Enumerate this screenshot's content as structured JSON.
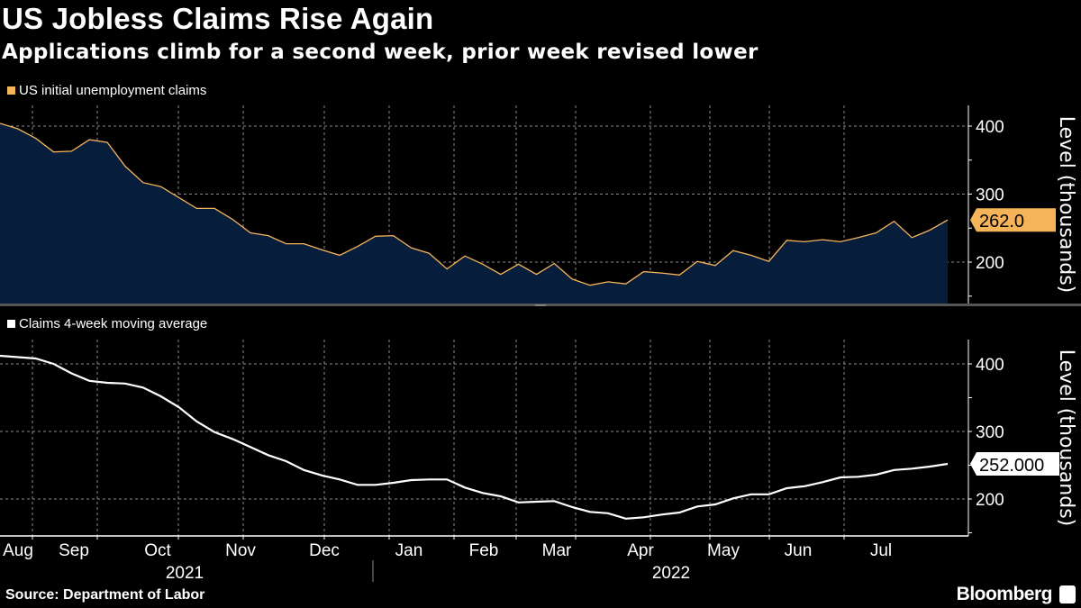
{
  "title": "US Jobless Claims Rise Again",
  "subtitle": "Applications climb for a second week, prior week revised lower",
  "source": "Source: Department of Labor",
  "brand": "Bloomberg",
  "colors": {
    "background": "#000000",
    "claims_line": "#f6b45a",
    "claims_fill": "#061d3b",
    "avg_line": "#ffffff",
    "grid": "#8a8a8a"
  },
  "chart_data": [
    {
      "type": "area",
      "legend": "US initial unemployment claims",
      "ylabel": "Level (thousands)",
      "y_ticks": [
        "400",
        "300",
        "200"
      ],
      "ylim": [
        140,
        430
      ],
      "grid": true,
      "legend_position": "top-left",
      "last_value_label": "262.0",
      "series": [
        {
          "name": "US initial unemployment claims",
          "values": [
            404,
            396,
            382,
            362,
            363,
            380,
            376,
            341,
            317,
            311,
            295,
            279,
            279,
            263,
            243,
            239,
            227,
            227,
            218,
            210,
            223,
            238,
            239,
            221,
            213,
            190,
            209,
            197,
            182,
            197,
            182,
            198,
            175,
            166,
            171,
            168,
            186,
            184,
            181,
            201,
            195,
            217,
            210,
            201,
            232,
            230,
            233,
            230,
            236,
            243,
            260,
            236,
            247,
            262
          ]
        }
      ]
    },
    {
      "type": "line",
      "legend": "Claims 4-week moving average",
      "ylabel": "Level (thousands)",
      "y_ticks": [
        "400",
        "300",
        "200"
      ],
      "ylim": [
        147,
        440
      ],
      "grid": true,
      "legend_position": "top-left",
      "last_value_label": "252.000",
      "series": [
        {
          "name": "Claims 4-week moving average",
          "values": [
            412,
            410,
            408,
            400,
            386,
            375,
            372,
            371,
            365,
            352,
            336,
            315,
            299,
            289,
            277,
            265,
            256,
            243,
            235,
            229,
            221,
            221,
            224,
            228,
            229,
            229,
            217,
            209,
            204,
            195,
            196,
            197,
            188,
            181,
            179,
            171,
            173,
            177,
            180,
            189,
            192,
            201,
            207,
            207,
            216,
            219,
            225,
            232,
            233,
            236,
            243,
            245,
            248,
            252
          ]
        }
      ]
    }
  ],
  "x_labels": [
    "Aug",
    "Sep",
    "Oct",
    "Nov",
    "Dec",
    "Jan",
    "Feb",
    "Mar",
    "Apr",
    "May",
    "Jun",
    "Jul"
  ],
  "year_labels": [
    "2021",
    "2022"
  ]
}
